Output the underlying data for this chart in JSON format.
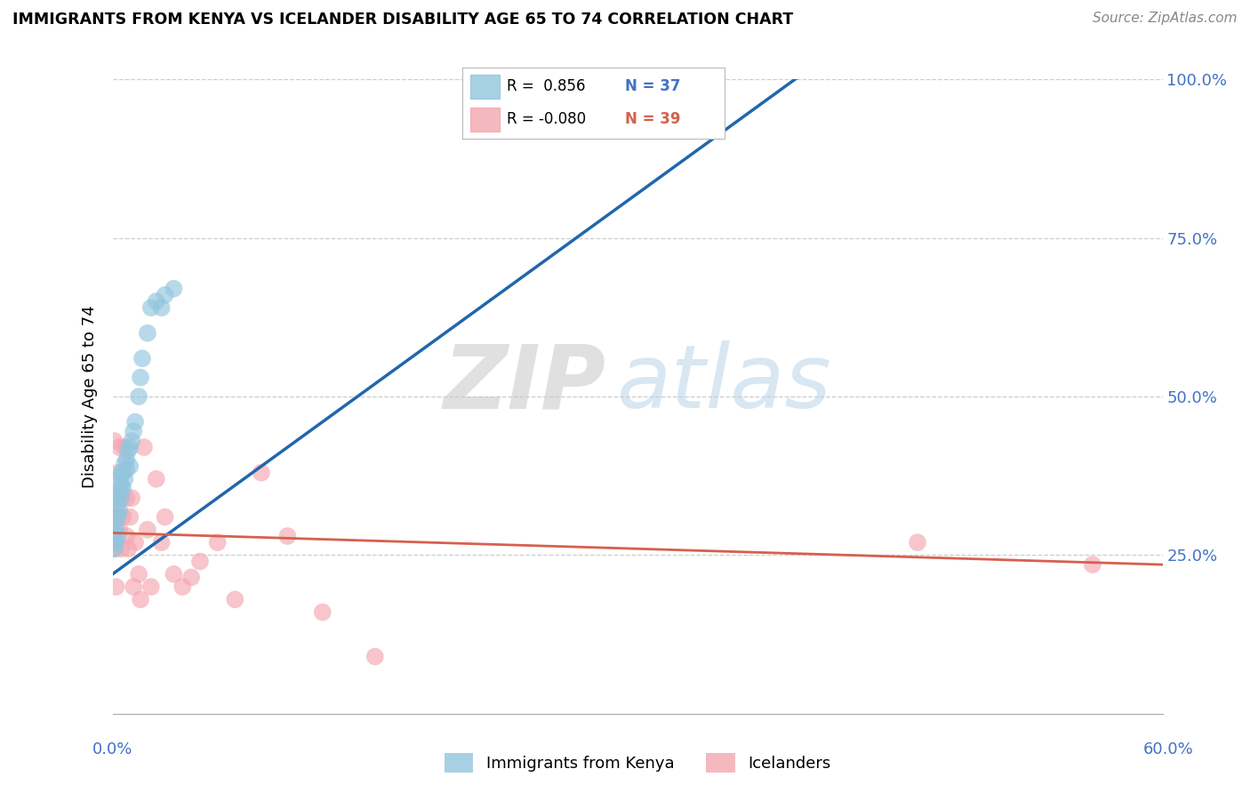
{
  "title": "IMMIGRANTS FROM KENYA VS ICELANDER DISABILITY AGE 65 TO 74 CORRELATION CHART",
  "source": "Source: ZipAtlas.com",
  "ylabel": "Disability Age 65 to 74",
  "kenya_r": 0.856,
  "kenya_n": 37,
  "iceland_r": -0.08,
  "iceland_n": 39,
  "kenya_color": "#92c5de",
  "iceland_color": "#f4a6b0",
  "kenya_line_color": "#2166ac",
  "iceland_line_color": "#d6604d",
  "xlim": [
    0.0,
    0.6
  ],
  "ylim": [
    0.0,
    1.0
  ],
  "kenya_points_x": [
    0.001,
    0.001,
    0.001,
    0.002,
    0.002,
    0.002,
    0.002,
    0.003,
    0.003,
    0.003,
    0.004,
    0.004,
    0.004,
    0.005,
    0.005,
    0.005,
    0.006,
    0.006,
    0.007,
    0.007,
    0.008,
    0.008,
    0.009,
    0.01,
    0.01,
    0.011,
    0.012,
    0.013,
    0.015,
    0.016,
    0.017,
    0.02,
    0.022,
    0.025,
    0.028,
    0.03,
    0.035
  ],
  "kenya_points_y": [
    0.26,
    0.275,
    0.285,
    0.27,
    0.29,
    0.305,
    0.32,
    0.28,
    0.31,
    0.34,
    0.32,
    0.35,
    0.37,
    0.34,
    0.36,
    0.38,
    0.355,
    0.38,
    0.37,
    0.395,
    0.385,
    0.4,
    0.415,
    0.39,
    0.42,
    0.43,
    0.445,
    0.46,
    0.5,
    0.53,
    0.56,
    0.6,
    0.64,
    0.65,
    0.64,
    0.66,
    0.67
  ],
  "iceland_points_x": [
    0.001,
    0.001,
    0.002,
    0.002,
    0.003,
    0.003,
    0.004,
    0.004,
    0.005,
    0.005,
    0.006,
    0.007,
    0.008,
    0.008,
    0.009,
    0.01,
    0.011,
    0.012,
    0.013,
    0.015,
    0.016,
    0.018,
    0.02,
    0.022,
    0.025,
    0.028,
    0.03,
    0.035,
    0.04,
    0.045,
    0.05,
    0.06,
    0.07,
    0.085,
    0.1,
    0.12,
    0.15,
    0.46,
    0.56
  ],
  "iceland_points_y": [
    0.43,
    0.26,
    0.31,
    0.2,
    0.38,
    0.33,
    0.42,
    0.29,
    0.35,
    0.26,
    0.31,
    0.42,
    0.28,
    0.34,
    0.26,
    0.31,
    0.34,
    0.2,
    0.27,
    0.22,
    0.18,
    0.42,
    0.29,
    0.2,
    0.37,
    0.27,
    0.31,
    0.22,
    0.2,
    0.215,
    0.24,
    0.27,
    0.18,
    0.38,
    0.28,
    0.16,
    0.09,
    0.27,
    0.235
  ],
  "kenya_line_x": [
    0.0,
    0.4
  ],
  "kenya_line_y": [
    0.22,
    1.02
  ],
  "iceland_line_x": [
    0.0,
    0.6
  ],
  "iceland_line_y": [
    0.285,
    0.235
  ],
  "grid_yticks": [
    0.25,
    0.5,
    0.75,
    1.0
  ],
  "right_tick_labels": [
    "25.0%",
    "50.0%",
    "75.0%",
    "100.0%"
  ],
  "watermark_zip_color": "#c8c8c8",
  "watermark_atlas_color": "#b8d4e8",
  "background_color": "#ffffff"
}
